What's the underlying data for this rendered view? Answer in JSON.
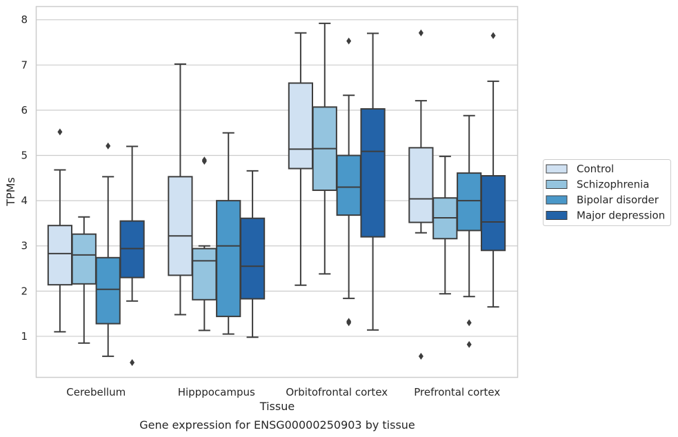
{
  "chart_data": {
    "type": "box",
    "xlabel": "Tissue",
    "ylabel": "TPMs",
    "caption": "Gene expression for ENSG00000250903 by tissue",
    "ylim": [
      0.1,
      8.3
    ],
    "yticks": [
      "1",
      "2",
      "3",
      "4",
      "5",
      "6",
      "7",
      "8"
    ],
    "grid": true,
    "legend_position": "right",
    "categories": [
      "Cerebellum",
      "Hipppocampus",
      "Orbitofrontal cortex",
      "Prefrontal cortex"
    ],
    "series": [
      {
        "name": "Control",
        "color": "#d0e1f2",
        "boxes": [
          {
            "whislo": 1.1,
            "q1": 2.14,
            "med": 2.83,
            "q3": 3.45,
            "whishi": 4.68,
            "fliers": [
              5.52
            ]
          },
          {
            "whislo": 1.48,
            "q1": 2.35,
            "med": 3.22,
            "q3": 4.53,
            "whishi": 7.02,
            "fliers": []
          },
          {
            "whislo": 2.13,
            "q1": 4.71,
            "med": 5.14,
            "q3": 6.6,
            "whishi": 7.71,
            "fliers": []
          },
          {
            "whislo": 3.29,
            "q1": 3.52,
            "med": 4.04,
            "q3": 5.17,
            "whishi": 6.21,
            "fliers": [
              0.56,
              7.71
            ]
          }
        ]
      },
      {
        "name": "Schizophrenia",
        "color": "#94c4df",
        "boxes": [
          {
            "whislo": 0.85,
            "q1": 2.16,
            "med": 2.8,
            "q3": 3.26,
            "whishi": 3.64,
            "fliers": []
          },
          {
            "whislo": 1.13,
            "q1": 1.81,
            "med": 2.67,
            "q3": 2.94,
            "whishi": 3.0,
            "fliers": [
              4.87,
              4.9
            ]
          },
          {
            "whislo": 2.38,
            "q1": 4.23,
            "med": 5.15,
            "q3": 6.07,
            "whishi": 7.92,
            "fliers": []
          },
          {
            "whislo": 1.94,
            "q1": 3.16,
            "med": 3.62,
            "q3": 4.06,
            "whishi": 4.98,
            "fliers": []
          }
        ]
      },
      {
        "name": "Bipolar disorder",
        "color": "#4a98c9",
        "boxes": [
          {
            "whislo": 0.56,
            "q1": 1.28,
            "med": 2.04,
            "q3": 2.74,
            "whishi": 4.53,
            "fliers": [
              5.21
            ]
          },
          {
            "whislo": 1.05,
            "q1": 1.44,
            "med": 3.0,
            "q3": 4.0,
            "whishi": 5.5,
            "fliers": []
          },
          {
            "whislo": 1.84,
            "q1": 3.68,
            "med": 4.3,
            "q3": 5.0,
            "whishi": 6.33,
            "fliers": [
              1.3,
              1.33,
              7.53
            ]
          },
          {
            "whislo": 1.88,
            "q1": 3.34,
            "med": 4.0,
            "q3": 4.61,
            "whishi": 5.88,
            "fliers": [
              0.82,
              1.3
            ]
          }
        ]
      },
      {
        "name": "Major depression",
        "color": "#2363a8",
        "boxes": [
          {
            "whislo": 1.78,
            "q1": 2.3,
            "med": 2.94,
            "q3": 3.55,
            "whishi": 5.2,
            "fliers": [
              0.42
            ]
          },
          {
            "whislo": 0.98,
            "q1": 1.83,
            "med": 2.55,
            "q3": 3.61,
            "whishi": 4.66,
            "fliers": []
          },
          {
            "whislo": 1.14,
            "q1": 3.2,
            "med": 5.09,
            "q3": 6.03,
            "whishi": 7.7,
            "fliers": []
          },
          {
            "whislo": 1.65,
            "q1": 2.9,
            "med": 3.53,
            "q3": 4.55,
            "whishi": 6.64,
            "fliers": [
              7.65
            ]
          }
        ]
      }
    ]
  }
}
